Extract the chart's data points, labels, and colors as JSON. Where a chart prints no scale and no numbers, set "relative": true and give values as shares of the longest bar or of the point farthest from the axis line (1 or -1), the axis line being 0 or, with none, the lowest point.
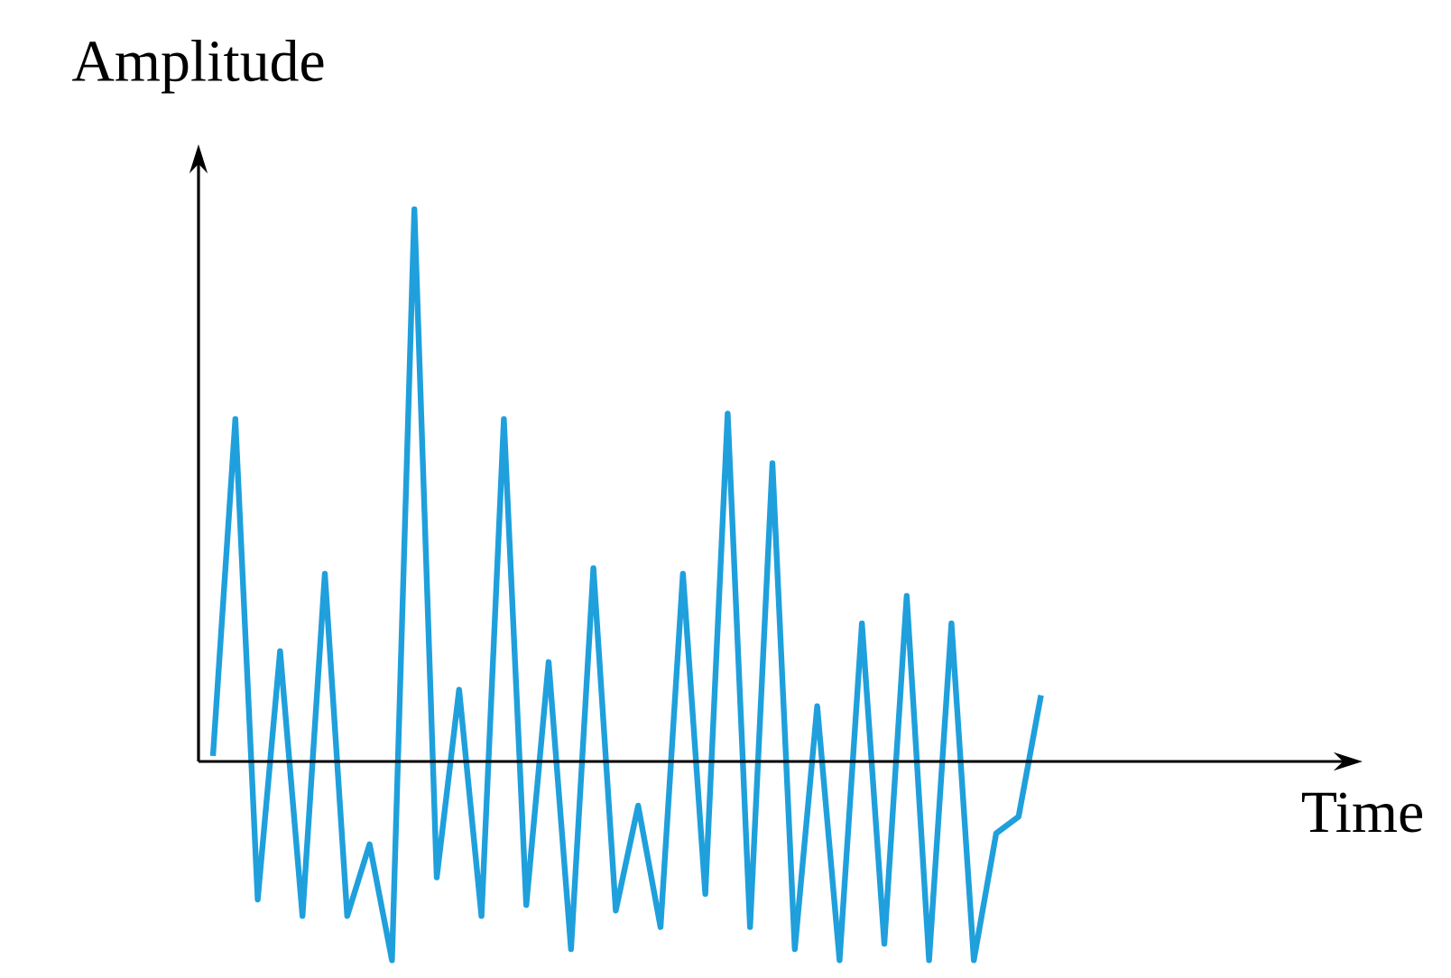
{
  "chart_data": {
    "type": "line",
    "xlabel": "Time",
    "ylabel": "Amplitude",
    "relative": true,
    "color": "#1fa0dc",
    "categories": [
      null,
      null,
      null,
      null,
      null,
      null,
      null,
      null,
      null,
      null,
      null,
      null,
      null,
      null,
      null,
      null,
      null,
      null,
      null,
      null,
      null,
      null,
      null,
      null,
      null,
      null,
      null,
      null,
      null,
      null,
      null,
      null,
      null,
      null,
      null,
      null,
      null,
      null
    ],
    "values": [
      0.01,
      0.62,
      -0.25,
      0.2,
      -0.28,
      0.34,
      -0.28,
      -0.15,
      -0.36,
      1,
      -0.21,
      0.13,
      -0.28,
      0.62,
      -0.26,
      0.18,
      -0.34,
      0.35,
      -0.27,
      -0.08,
      -0.3,
      0.34,
      -0.24,
      0.63,
      -0.3,
      0.54,
      -0.34,
      0.1,
      -0.36,
      0.25,
      -0.33,
      0.3,
      -0.36,
      0.25,
      -0.36,
      -0.13,
      -0.1,
      0.12
    ]
  }
}
